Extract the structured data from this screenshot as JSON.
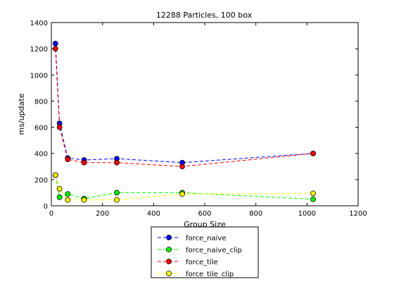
{
  "chart_data": {
    "type": "line",
    "title": "12288 Particles, 100 box",
    "xlabel": "Group Size",
    "ylabel": "ms/update",
    "xlim": [
      0,
      1200
    ],
    "ylim": [
      0,
      1400
    ],
    "xticks": [
      0,
      200,
      400,
      600,
      800,
      1000,
      1200
    ],
    "yticks": [
      0,
      200,
      400,
      600,
      800,
      1000,
      1200,
      1400
    ],
    "grid": false,
    "legend_position": "bottom-center",
    "x": [
      16,
      32,
      64,
      128,
      256,
      512,
      1024
    ],
    "series": [
      {
        "name": "force_naive",
        "color": "#0000ff",
        "marker_color": "#0000ff",
        "values": [
          1240,
          630,
          365,
          350,
          360,
          330,
          400
        ]
      },
      {
        "name": "force_naive_clip",
        "color": "#00ff00",
        "marker_color": "#00ff00",
        "values": [
          235,
          65,
          90,
          55,
          100,
          100,
          50
        ]
      },
      {
        "name": "force_tile",
        "color": "#ff0000",
        "marker_color": "#ff0000",
        "values": [
          1200,
          600,
          355,
          330,
          330,
          300,
          400
        ]
      },
      {
        "name": "force_tile_clip",
        "color": "#ffff00",
        "marker_color": "#ffff00",
        "values": [
          235,
          130,
          45,
          45,
          45,
          90,
          95
        ]
      }
    ]
  }
}
